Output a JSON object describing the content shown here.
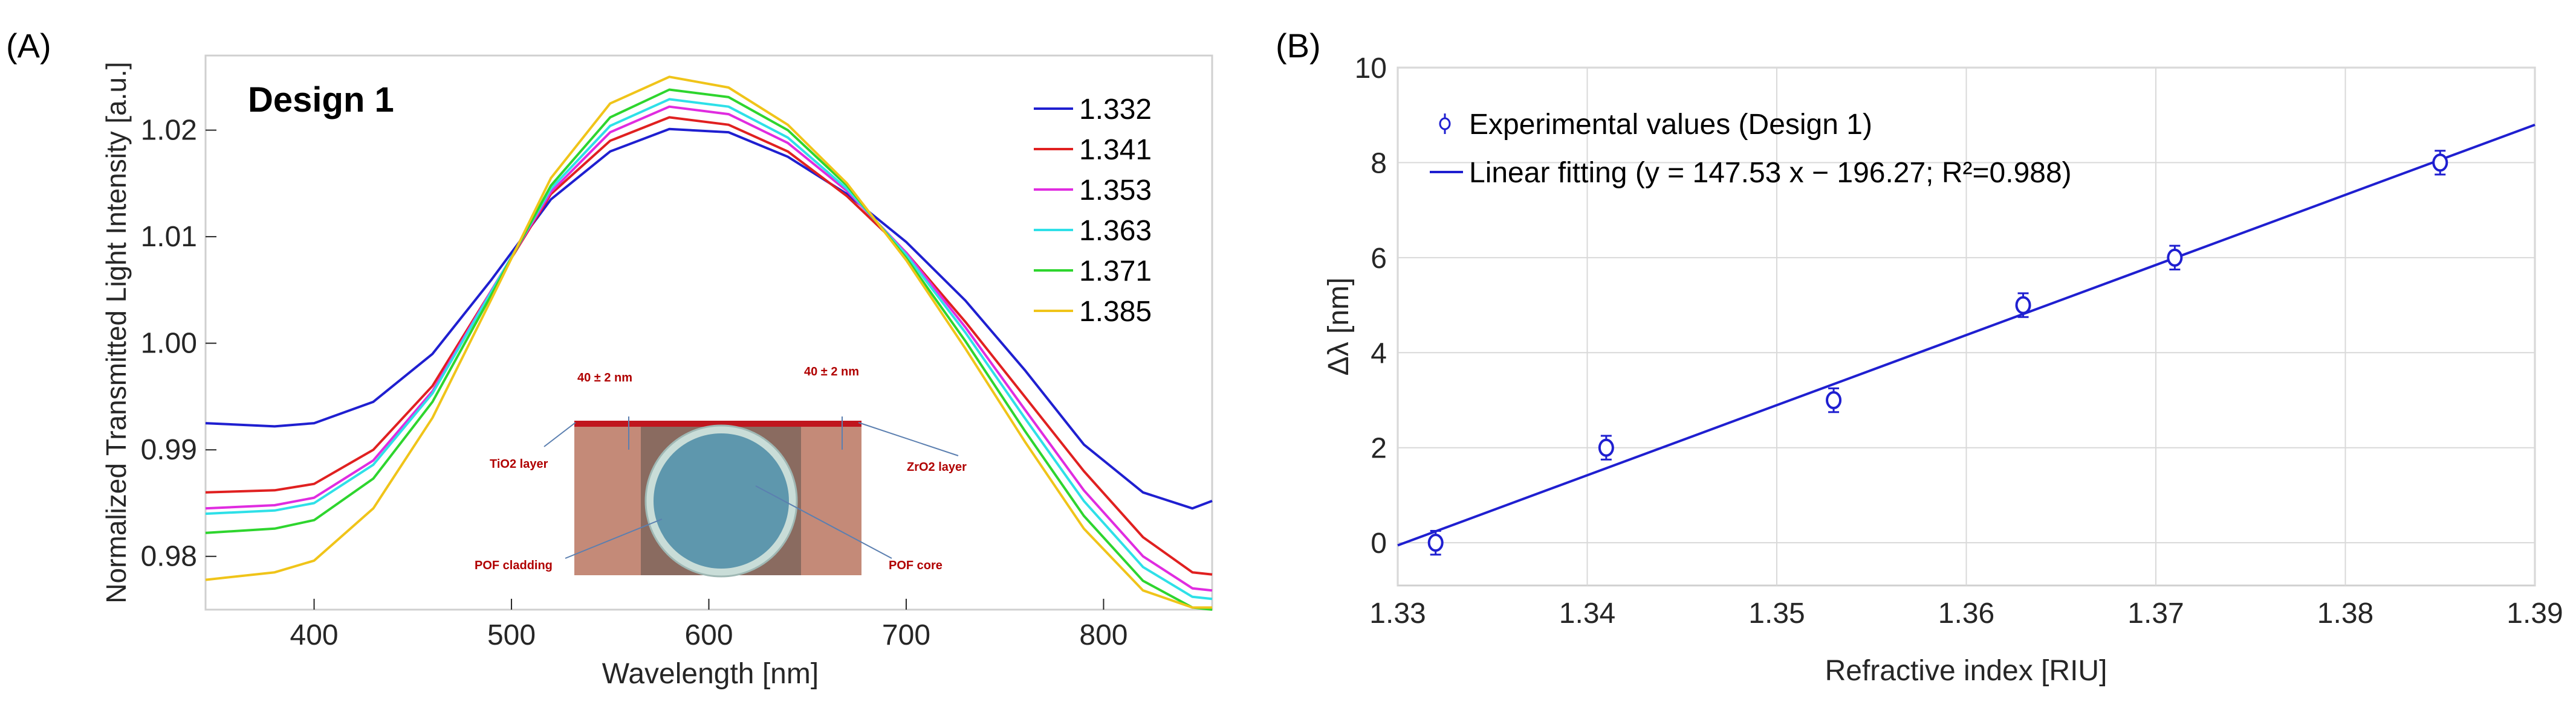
{
  "chart_data": [
    {
      "panel": "(A)",
      "type": "line",
      "annotation": "Design 1",
      "xlabel": "Wavelength [nm]",
      "ylabel": "Normalized Transmitted Light Intensity [a.u.]",
      "xlim": [
        345,
        855
      ],
      "ylim": [
        0.975,
        1.027
      ],
      "xticks": [
        "400",
        "500",
        "600",
        "700",
        "800"
      ],
      "yticks": [
        "0.98",
        "0.99",
        "1.00",
        "1.01",
        "1.02"
      ],
      "legend_position": "top-right",
      "series": [
        {
          "name": "1.332",
          "color": "#1f1fd0",
          "x": [
            345,
            380,
            400,
            430,
            460,
            490,
            520,
            550,
            580,
            610,
            640,
            670,
            700,
            730,
            760,
            790,
            820,
            845,
            855
          ],
          "y": [
            0.9925,
            0.9922,
            0.9925,
            0.9945,
            0.999,
            1.006,
            1.0135,
            1.018,
            1.0201,
            1.0198,
            1.0175,
            1.014,
            1.0095,
            1.004,
            0.9975,
            0.9905,
            0.986,
            0.9845,
            0.9852
          ]
        },
        {
          "name": "1.341",
          "color": "#e02020",
          "x": [
            345,
            380,
            400,
            430,
            460,
            490,
            520,
            550,
            580,
            610,
            640,
            670,
            700,
            730,
            760,
            790,
            820,
            845,
            855
          ],
          "y": [
            0.986,
            0.9862,
            0.9868,
            0.99,
            0.996,
            1.005,
            1.014,
            1.019,
            1.0212,
            1.0205,
            1.018,
            1.0138,
            1.0085,
            1.002,
            0.995,
            0.988,
            0.9818,
            0.9785,
            0.9783
          ]
        },
        {
          "name": "1.353",
          "color": "#e02ce0",
          "x": [
            345,
            380,
            400,
            430,
            460,
            490,
            520,
            550,
            580,
            610,
            640,
            670,
            700,
            730,
            760,
            790,
            820,
            845,
            855
          ],
          "y": [
            0.9845,
            0.9848,
            0.9855,
            0.989,
            0.9955,
            1.005,
            1.0142,
            1.0198,
            1.0222,
            1.0215,
            1.0188,
            1.0143,
            1.0085,
            1.0015,
            0.9938,
            0.9862,
            0.98,
            0.977,
            0.9768
          ]
        },
        {
          "name": "1.363",
          "color": "#2ee0e8",
          "x": [
            345,
            380,
            400,
            430,
            460,
            490,
            520,
            550,
            580,
            610,
            640,
            670,
            700,
            730,
            760,
            790,
            820,
            845,
            855
          ],
          "y": [
            0.984,
            0.9843,
            0.985,
            0.9886,
            0.9953,
            1.0049,
            1.0145,
            1.0204,
            1.0229,
            1.0222,
            1.0193,
            1.0145,
            1.0083,
            1.001,
            0.993,
            0.9852,
            0.979,
            0.9762,
            0.976
          ]
        },
        {
          "name": "1.371",
          "color": "#2ed52e",
          "x": [
            345,
            380,
            400,
            430,
            460,
            490,
            520,
            550,
            580,
            610,
            640,
            670,
            700,
            730,
            760,
            790,
            820,
            845,
            855
          ],
          "y": [
            0.9822,
            0.9826,
            0.9834,
            0.9873,
            0.9945,
            1.0046,
            1.0148,
            1.0212,
            1.0238,
            1.0231,
            1.02,
            1.0148,
            1.008,
            1.0002,
            0.9918,
            0.9838,
            0.9777,
            0.9752,
            0.975
          ]
        },
        {
          "name": "1.385",
          "color": "#f0c419",
          "x": [
            345,
            380,
            400,
            430,
            460,
            490,
            520,
            550,
            580,
            610,
            640,
            670,
            700,
            730,
            760,
            790,
            820,
            845,
            855
          ],
          "y": [
            0.9778,
            0.9785,
            0.9796,
            0.9845,
            0.993,
            1.0042,
            1.0155,
            1.0225,
            1.025,
            1.024,
            1.0205,
            1.015,
            1.0078,
            0.9995,
            0.9908,
            0.9826,
            0.9768,
            0.9752,
            0.9752
          ]
        }
      ],
      "inset": {
        "labels": [
          "40 ± 2 nm",
          "40 ± 2 nm",
          "TiO2 layer",
          "ZrO2 layer",
          "POF cladding",
          "POF core"
        ]
      }
    },
    {
      "panel": "(B)",
      "type": "scatter",
      "xlabel": "Refractive index [RIU]",
      "ylabel": "Δλ [nm]",
      "xlim": [
        1.33,
        1.39
      ],
      "ylim": [
        -0.9,
        10
      ],
      "xticks": [
        "1.33",
        "1.34",
        "1.35",
        "1.36",
        "1.37",
        "1.38",
        "1.39"
      ],
      "yticks": [
        "0",
        "2",
        "4",
        "6",
        "8",
        "10"
      ],
      "legend_position": "top-left",
      "series": [
        {
          "name": "Experimental values (Design 1)",
          "color": "#1f1fd0",
          "x": [
            1.332,
            1.341,
            1.353,
            1.363,
            1.371,
            1.385
          ],
          "y": [
            0,
            2,
            3,
            5,
            6,
            8
          ],
          "error": [
            0.25,
            0.25,
            0.25,
            0.25,
            0.25,
            0.25
          ]
        },
        {
          "name": "Linear fitting (y = 147.53 x − 196.27; R²=0.988)",
          "color": "#1f1fd0",
          "fit": {
            "slope": 147.53,
            "intercept": -196.27
          }
        }
      ]
    }
  ]
}
